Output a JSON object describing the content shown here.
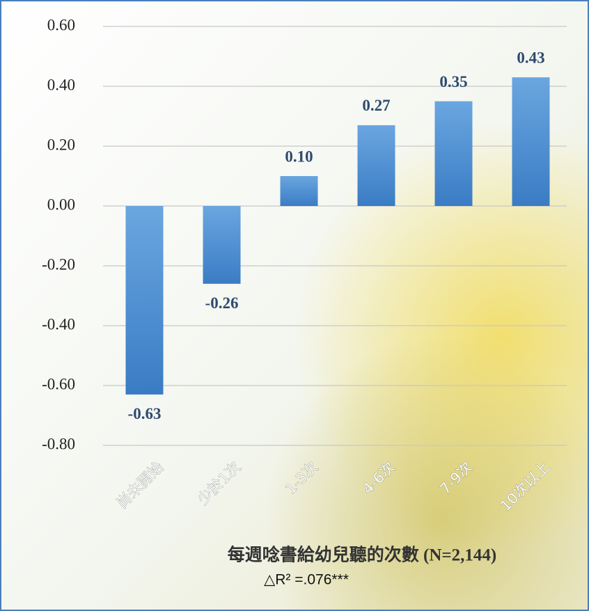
{
  "chart_data": {
    "type": "bar",
    "categories": [
      "尚未開始",
      "少於1次",
      "1-3次",
      "4-6次",
      "7-9次",
      "10次以上"
    ],
    "values": [
      -0.63,
      -0.26,
      0.1,
      0.27,
      0.35,
      0.43
    ],
    "value_labels": [
      "-0.63",
      "-0.26",
      "0.10",
      "0.27",
      "0.35",
      "0.43"
    ],
    "color": "#4a8fd4",
    "ylim": [
      -0.8,
      0.6
    ],
    "yticks": [
      {
        "value": -0.8,
        "label": "-0.80"
      },
      {
        "value": -0.6,
        "label": "-0.60"
      },
      {
        "value": -0.4,
        "label": "-0.40"
      },
      {
        "value": -0.2,
        "label": "-0.20"
      },
      {
        "value": 0,
        "label": "0.00"
      },
      {
        "value": 0.2,
        "label": "0.20"
      },
      {
        "value": 0.4,
        "label": "0.40"
      },
      {
        "value": 0.6,
        "label": "0.60"
      }
    ],
    "grid": true,
    "x_label": "每週唸書給幼兒聽的次數 (N=2,144)",
    "annotation": "△R² =.076***"
  }
}
